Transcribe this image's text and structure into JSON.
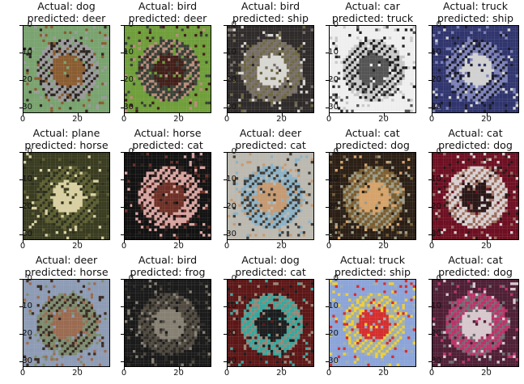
{
  "chart_data": {
    "type": "image-grid",
    "rows": 3,
    "cols": 5,
    "image_size": 32,
    "xticks": [
      "0",
      "20"
    ],
    "yticks": [
      "0",
      "10",
      "20",
      "30"
    ],
    "panels": [
      {
        "actual": "Actual: dog",
        "predicted": "predicted:  deer",
        "palette": [
          "#79a36f",
          "#9a9a9c",
          "#8a5c31",
          "#2d2620"
        ]
      },
      {
        "actual": "Actual: bird",
        "predicted": "predicted:  deer",
        "palette": [
          "#6f9e3a",
          "#3a4036",
          "#421f19",
          "#b98c7b"
        ]
      },
      {
        "actual": "Actual: bird",
        "predicted": "predicted:  ship",
        "palette": [
          "#2f2b2a",
          "#776f68",
          "#d8d7d2",
          "#6f6842"
        ]
      },
      {
        "actual": "Actual: car",
        "predicted": "predicted:  truck",
        "palette": [
          "#f0f0f0",
          "#c9c9c9",
          "#545454",
          "#202020"
        ]
      },
      {
        "actual": "Actual: truck",
        "predicted": "predicted:  ship",
        "palette": [
          "#30356e",
          "#7b81b6",
          "#d1d1d1",
          "#1c1c2d"
        ]
      },
      {
        "actual": "Actual: plane",
        "predicted": "predicted:  horse",
        "palette": [
          "#3a3c20",
          "#5d5e31",
          "#d8d0a2",
          "#2c301d"
        ]
      },
      {
        "actual": "Actual: horse",
        "predicted": "predicted:  cat",
        "palette": [
          "#121212",
          "#d8a4a0",
          "#6e3026",
          "#2f1f1c"
        ]
      },
      {
        "actual": "Actual: deer",
        "predicted": "predicted:  cat",
        "palette": [
          "#bcb9b0",
          "#8db2c6",
          "#c69a72",
          "#3e3e3b"
        ]
      },
      {
        "actual": "Actual: cat",
        "predicted": "predicted:  dog",
        "palette": [
          "#2b1f15",
          "#7b5f33",
          "#d5a36b",
          "#9c9c87"
        ]
      },
      {
        "actual": "Actual: cat",
        "predicted": "predicted:  dog",
        "palette": [
          "#6e0f22",
          "#d9cfd0",
          "#2a1717",
          "#9b6f5f"
        ]
      },
      {
        "actual": "Actual: deer",
        "predicted": "predicted:  horse",
        "palette": [
          "#8d9bb5",
          "#7d8c6f",
          "#9a6b51",
          "#3b2d23"
        ]
      },
      {
        "actual": "Actual: bird",
        "predicted": "predicted:  frog",
        "palette": [
          "#1a1a1a",
          "#514a40",
          "#868073",
          "#2e2c27"
        ]
      },
      {
        "actual": "Actual: dog",
        "predicted": "predicted:  cat",
        "palette": [
          "#5d1616",
          "#37a79d",
          "#1b1d1e",
          "#9a8675"
        ]
      },
      {
        "actual": "Actual: truck",
        "predicted": "predicted:  ship",
        "palette": [
          "#8ba4d9",
          "#a2afab",
          "#d52e2e",
          "#f0cf31"
        ]
      },
      {
        "actual": "Actual: cat",
        "predicted": "predicted:  dog",
        "palette": [
          "#4e1f35",
          "#bc336a",
          "#d8c8cd",
          "#6d6d72"
        ]
      }
    ]
  }
}
